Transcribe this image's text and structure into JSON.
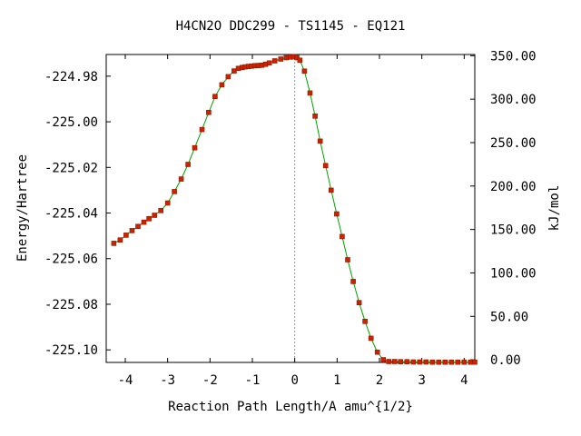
{
  "chart_data": {
    "type": "line",
    "title": "H4CN2O   DDC299 - TS1145 - EQ121",
    "xlabel": "Reaction Path Length/A amu^{1/2}",
    "ylabel": "Energy/Hartree",
    "y2label": "kJ/mol",
    "xlim": [
      -4.45,
      4.25
    ],
    "ylim": [
      -225.1055,
      -224.9705
    ],
    "y2lim": [
      -3.0,
      351.4
    ],
    "x_ticks": [
      -4,
      -3,
      -2,
      -1,
      0,
      1,
      2,
      3,
      4
    ],
    "x_tick_labels": [
      "-4",
      "-3",
      "-2",
      "-1",
      "0",
      "1",
      "2",
      "3",
      "4"
    ],
    "y_ticks": [
      -224.98,
      -225.0,
      -225.02,
      -225.04,
      -225.06,
      -225.08,
      -225.1
    ],
    "y_tick_labels": [
      "-224.98",
      "-225.00",
      "-225.02",
      "-225.04",
      "-225.06",
      "-225.08",
      "-225.10"
    ],
    "y2_ticks": [
      0,
      50,
      100,
      150,
      200,
      250,
      300,
      350
    ],
    "y2_tick_labels": [
      "0.00",
      "50.00",
      "100.00",
      "150.00",
      "200.00",
      "250.00",
      "300.00",
      "350.00"
    ],
    "ts_x": 0,
    "grid": false,
    "colors": {
      "line": "#00a000",
      "marker": "#cc2200",
      "marker_edge": "#8a1a00",
      "ts_line": "#999999"
    },
    "series": [
      {
        "x": [
          -4.27,
          -4.12,
          -3.98,
          -3.84,
          -3.7,
          -3.56,
          -3.44,
          -3.31,
          -3.16,
          -3.0,
          -2.84,
          -2.68,
          -2.52,
          -2.36,
          -2.19,
          -2.03,
          -1.88,
          -1.72,
          -1.57,
          -1.43,
          -1.33,
          -1.24,
          -1.17,
          -1.09,
          -1.02,
          -0.94,
          -0.86,
          -0.78,
          -0.69,
          -0.6,
          -0.47,
          -0.33,
          -0.2,
          -0.1,
          -0.02,
          0.05,
          0.12,
          0.23,
          0.36,
          0.48,
          0.6,
          0.73,
          0.86,
          0.99,
          1.12,
          1.25,
          1.38,
          1.52,
          1.66,
          1.8,
          1.95,
          2.09,
          2.22,
          2.36,
          2.5,
          2.65,
          2.8,
          2.95,
          3.1,
          3.25,
          3.4,
          3.55,
          3.7,
          3.85,
          4.0,
          4.15,
          4.25
        ],
        "y": [
          -225.0533,
          -225.0518,
          -225.0497,
          -225.0477,
          -225.0459,
          -225.044,
          -225.0425,
          -225.041,
          -225.0389,
          -225.0356,
          -225.0306,
          -225.0251,
          -225.0187,
          -225.0114,
          -225.0034,
          -224.9959,
          -224.9889,
          -224.9838,
          -224.9802,
          -224.9777,
          -224.9766,
          -224.9762,
          -224.9759,
          -224.9757,
          -224.9756,
          -224.9754,
          -224.9753,
          -224.9752,
          -224.9748,
          -224.9742,
          -224.9733,
          -224.9725,
          -224.9719,
          -224.9716,
          -224.9715,
          -224.9719,
          -224.973,
          -224.9778,
          -224.9874,
          -224.9975,
          -225.0085,
          -225.0192,
          -225.03,
          -225.0404,
          -225.0503,
          -225.0605,
          -225.07,
          -225.0793,
          -225.0875,
          -225.0949,
          -225.101,
          -225.1043,
          -225.1051,
          -225.1051,
          -225.1052,
          -225.1052,
          -225.1053,
          -225.1053,
          -225.1053,
          -225.1054,
          -225.1054,
          -225.1054,
          -225.1054,
          -225.1054,
          -225.1054,
          -225.1054,
          -225.1054
        ]
      }
    ]
  }
}
